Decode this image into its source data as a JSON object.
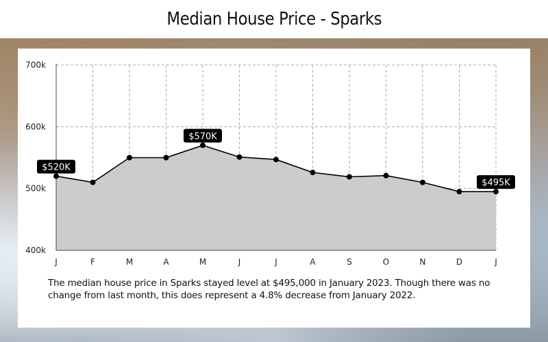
{
  "title": "Median House Price - Sparks",
  "caption": "The median house price in Sparks stayed level at $495,000 in January 2023.  Though there was no change from last month, this does represent a 4.8% decrease from January 2022.",
  "colors": {
    "fill": "#cccccc",
    "line": "#000000",
    "grid": "#aaaaaa",
    "label_bg": "#000000",
    "label_text": "#ffffff"
  },
  "chart_data": {
    "type": "area",
    "categories": [
      "J",
      "F",
      "M",
      "A",
      "M",
      "J",
      "J",
      "A",
      "S",
      "O",
      "N",
      "D",
      "J"
    ],
    "values": [
      520000,
      510000,
      550000,
      550000,
      570000,
      551000,
      547000,
      526000,
      519000,
      521000,
      510000,
      495000,
      495000
    ],
    "ylim": [
      400000,
      700000
    ],
    "yticks": [
      400000,
      500000,
      600000,
      700000
    ],
    "ytick_labels": [
      "400k",
      "500k",
      "600k",
      "700k"
    ],
    "grid": true,
    "data_labels": [
      {
        "index": 0,
        "text": "$520K"
      },
      {
        "index": 4,
        "text": "$570K"
      },
      {
        "index": 12,
        "text": "$495K"
      }
    ]
  }
}
